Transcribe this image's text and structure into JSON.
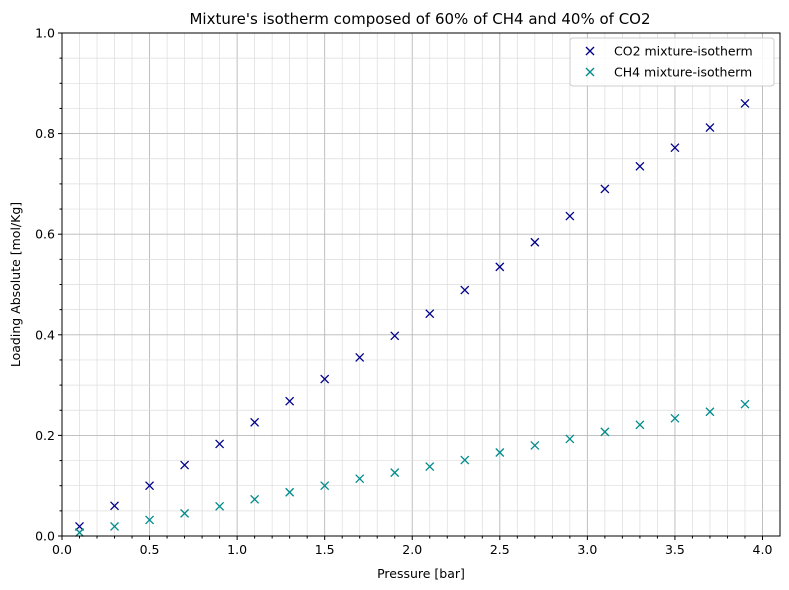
{
  "chart_data": {
    "type": "scatter",
    "title": "Mixture's isotherm composed of 60% of CH4 and 40% of CO2",
    "xlabel": "Pressure [bar]",
    "ylabel": "Loading Absolute [mol/Kg]",
    "xlim": [
      0,
      4.1
    ],
    "ylim": [
      0,
      1.0
    ],
    "xticks": [
      "0.0",
      "0.5",
      "1.0",
      "1.5",
      "2.0",
      "2.5",
      "3.0",
      "3.5",
      "4.0"
    ],
    "yticks": [
      "0.0",
      "0.2",
      "0.4",
      "0.6",
      "0.8",
      "1.0"
    ],
    "grid": true,
    "legend_position": "top-right",
    "marker": "x",
    "series": [
      {
        "name": "CO2 mixture-isotherm",
        "color": "#00008b",
        "x": [
          0.1,
          0.3,
          0.5,
          0.7,
          0.9,
          1.1,
          1.3,
          1.5,
          1.7,
          1.9,
          2.1,
          2.3,
          2.5,
          2.7,
          2.9,
          3.1,
          3.3,
          3.5,
          3.7,
          3.9
        ],
        "y": [
          0.019,
          0.06,
          0.1,
          0.141,
          0.183,
          0.226,
          0.268,
          0.312,
          0.355,
          0.398,
          0.442,
          0.489,
          0.535,
          0.584,
          0.636,
          0.69,
          0.735,
          0.772,
          0.812,
          0.86
        ]
      },
      {
        "name": "CH4 mixture-isotherm",
        "color": "#008b8b",
        "x": [
          0.1,
          0.3,
          0.5,
          0.7,
          0.9,
          1.1,
          1.3,
          1.5,
          1.7,
          1.9,
          2.1,
          2.3,
          2.5,
          2.7,
          2.9,
          3.1,
          3.3,
          3.5,
          3.7,
          3.9
        ],
        "y": [
          0.007,
          0.019,
          0.032,
          0.045,
          0.059,
          0.073,
          0.087,
          0.1,
          0.114,
          0.126,
          0.138,
          0.151,
          0.166,
          0.18,
          0.193,
          0.207,
          0.221,
          0.234,
          0.247,
          0.262
        ]
      }
    ]
  }
}
